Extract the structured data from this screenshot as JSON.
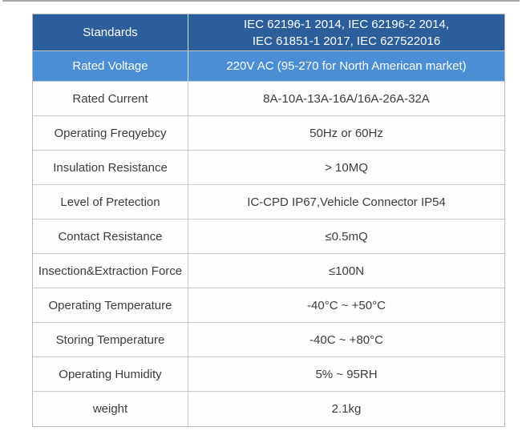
{
  "colors": {
    "header_dark_blue": "#2b5f9b",
    "header_light_blue": "#4a8fd6",
    "row_background": "#fdfdfd",
    "border_gray": "#c9c9c9",
    "text_dark": "#3d3d3d",
    "text_light": "#ffffff"
  },
  "table": {
    "title": "product-specifications",
    "columns": [
      "parameter",
      "value"
    ],
    "rows": [
      {
        "label": "Standards",
        "value": "IEC 62196-1 2014, IEC 62196-2 2014,\nIEC 61851-1 2017, IEC 627522016",
        "style": "dark-blue"
      },
      {
        "label": "Rated Voltage",
        "value": "220V AC (95-270 for North American market)",
        "style": "light-blue"
      },
      {
        "label": "Rated Current",
        "value": "8A-10A-13A-16A/16A-26A-32A",
        "style": "plain"
      },
      {
        "label": "Operating Freqyebcy",
        "value": "50Hz or 60Hz",
        "style": "plain"
      },
      {
        "label": "Insulation Resistance",
        "value": "> 10MQ",
        "style": "plain"
      },
      {
        "label": "Level of Pretection",
        "value": "IC-CPD IP67,Vehicle Connector IP54",
        "style": "plain"
      },
      {
        "label": "Contact Resistance",
        "value": "≤0.5mQ",
        "style": "plain"
      },
      {
        "label": "Insection&Extraction Force",
        "value": "≤100N",
        "style": "plain"
      },
      {
        "label": "Operating Temperature",
        "value": "-40°C ~ +50°C",
        "style": "plain"
      },
      {
        "label": "Storing Temperature",
        "value": "-40C ~ +80°C",
        "style": "plain"
      },
      {
        "label": "Operating Humidity",
        "value": "5% ~ 95RH",
        "style": "plain"
      },
      {
        "label": "weight",
        "value": "2.1kg",
        "style": "plain"
      }
    ]
  }
}
